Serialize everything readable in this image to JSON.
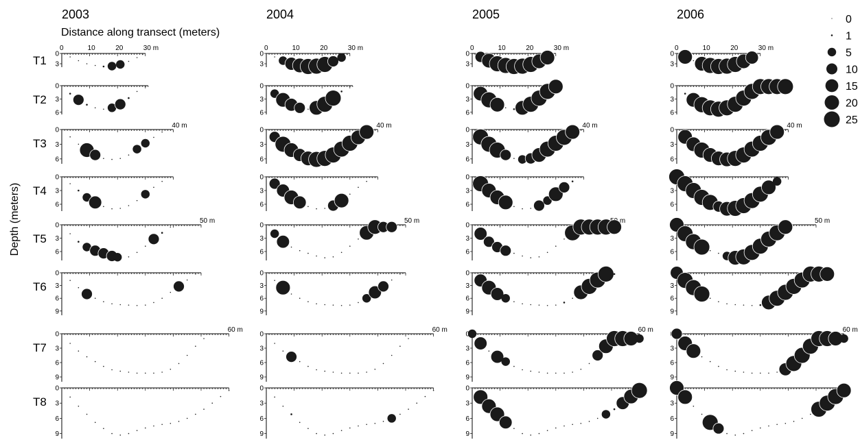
{
  "chart_data": {
    "type": "scatter",
    "panel_kind": "bubble depth profiles (dot size = count)",
    "years": [
      "2003",
      "2004",
      "2005",
      "2006"
    ],
    "xlabel": "Distance along transect (meters)",
    "ylabel": "Depth (meters)",
    "x_tick_labels": [
      "0",
      "10",
      "20",
      "30 m"
    ],
    "x_tick_values": [
      0,
      10,
      20,
      30
    ],
    "transects": [
      {
        "name": "T1",
        "length_m": 30,
        "max_depth": 4,
        "depth_ticks": [
          0,
          3
        ],
        "range_label": "",
        "profile": [
          [
            0,
            0
          ],
          [
            3,
            1
          ],
          [
            6,
            2.1
          ],
          [
            9,
            3
          ],
          [
            12,
            3.5
          ],
          [
            15,
            3.8
          ],
          [
            18,
            3.7
          ],
          [
            21,
            3.2
          ],
          [
            24,
            2.3
          ],
          [
            27,
            1.2
          ],
          [
            29,
            0.3
          ]
        ]
      },
      {
        "name": "T2",
        "length_m": 31,
        "max_depth": 6.5,
        "depth_ticks": [
          0,
          3,
          6
        ],
        "range_label": "",
        "profile": [
          [
            0,
            0
          ],
          [
            3,
            1.8
          ],
          [
            6,
            3.2
          ],
          [
            9,
            4.3
          ],
          [
            12,
            5
          ],
          [
            15,
            5.3
          ],
          [
            18,
            5
          ],
          [
            21,
            4.2
          ],
          [
            24,
            2.8
          ],
          [
            27,
            1.3
          ],
          [
            30,
            0.2
          ]
        ]
      },
      {
        "name": "T3",
        "length_m": 40,
        "max_depth": 7,
        "depth_ticks": [
          0,
          3,
          6
        ],
        "range_label": "40 m",
        "profile": [
          [
            0,
            0
          ],
          [
            3,
            1.5
          ],
          [
            6,
            3
          ],
          [
            9,
            4.2
          ],
          [
            12,
            5.2
          ],
          [
            15,
            5.9
          ],
          [
            18,
            6.1
          ],
          [
            21,
            5.9
          ],
          [
            24,
            5.2
          ],
          [
            27,
            4
          ],
          [
            30,
            2.8
          ],
          [
            33,
            1.6
          ],
          [
            36,
            0.5
          ]
        ]
      },
      {
        "name": "T4",
        "length_m": 40,
        "max_depth": 7.5,
        "depth_ticks": [
          0,
          3,
          6
        ],
        "range_label": "",
        "profile": [
          [
            0,
            0
          ],
          [
            3,
            1.5
          ],
          [
            6,
            3
          ],
          [
            9,
            4.5
          ],
          [
            12,
            5.6
          ],
          [
            15,
            6.5
          ],
          [
            18,
            7
          ],
          [
            21,
            6.9
          ],
          [
            24,
            6.3
          ],
          [
            27,
            5.2
          ],
          [
            30,
            3.8
          ],
          [
            33,
            2.3
          ],
          [
            36,
            1
          ],
          [
            39,
            0
          ]
        ]
      },
      {
        "name": "T5",
        "length_m": 50,
        "max_depth": 8,
        "depth_ticks": [
          0,
          3,
          6
        ],
        "range_label": "50 m",
        "profile": [
          [
            0,
            0
          ],
          [
            3,
            2
          ],
          [
            6,
            3.8
          ],
          [
            9,
            5
          ],
          [
            12,
            5.8
          ],
          [
            15,
            6.4
          ],
          [
            18,
            7
          ],
          [
            21,
            7.4
          ],
          [
            24,
            7.2
          ],
          [
            27,
            6.2
          ],
          [
            30,
            4.8
          ],
          [
            33,
            3.2
          ],
          [
            36,
            1.8
          ],
          [
            39,
            0.5
          ]
        ]
      },
      {
        "name": "T6",
        "length_m": 50,
        "max_depth": 10,
        "depth_ticks": [
          0,
          3,
          6,
          9
        ],
        "range_label": "",
        "profile": [
          [
            0,
            0
          ],
          [
            3,
            1.8
          ],
          [
            6,
            3.5
          ],
          [
            9,
            5
          ],
          [
            12,
            6
          ],
          [
            15,
            6.8
          ],
          [
            18,
            7.3
          ],
          [
            21,
            7.5
          ],
          [
            24,
            7.6
          ],
          [
            27,
            7.7
          ],
          [
            30,
            7.6
          ],
          [
            33,
            7
          ],
          [
            36,
            6
          ],
          [
            39,
            4.6
          ],
          [
            42,
            3.2
          ],
          [
            45,
            1.7
          ],
          [
            48,
            0.3
          ]
        ]
      },
      {
        "name": "T7",
        "length_m": 60,
        "max_depth": 10,
        "depth_ticks": [
          0,
          3,
          6,
          9
        ],
        "range_label": "60 m",
        "profile": [
          [
            0,
            0
          ],
          [
            3,
            2
          ],
          [
            6,
            3.6
          ],
          [
            9,
            4.8
          ],
          [
            12,
            5.8
          ],
          [
            15,
            6.8
          ],
          [
            18,
            7.5
          ],
          [
            21,
            7.8
          ],
          [
            24,
            8
          ],
          [
            27,
            8.2
          ],
          [
            30,
            8.2
          ],
          [
            33,
            8.2
          ],
          [
            36,
            8
          ],
          [
            39,
            7.4
          ],
          [
            42,
            6.2
          ],
          [
            45,
            4.5
          ],
          [
            48,
            2.6
          ],
          [
            51,
            1
          ]
        ]
      },
      {
        "name": "T8",
        "length_m": 60,
        "max_depth": 10,
        "depth_ticks": [
          0,
          3,
          6,
          9
        ],
        "range_label": "",
        "profile": [
          [
            0,
            0
          ],
          [
            3,
            1.8
          ],
          [
            6,
            3.6
          ],
          [
            9,
            5.2
          ],
          [
            12,
            6.8
          ],
          [
            15,
            8
          ],
          [
            18,
            9
          ],
          [
            21,
            9.3
          ],
          [
            24,
            9
          ],
          [
            27,
            8.4
          ],
          [
            30,
            7.9
          ],
          [
            33,
            7.5
          ],
          [
            36,
            7.2
          ],
          [
            39,
            7
          ],
          [
            42,
            6.6
          ],
          [
            45,
            6
          ],
          [
            48,
            5.2
          ],
          [
            51,
            4.2
          ],
          [
            54,
            3
          ],
          [
            57,
            1.7
          ],
          [
            60,
            0.5
          ]
        ]
      }
    ],
    "observations": [
      {
        "year": "2003",
        "transect": "T1",
        "x": [
          15,
          18,
          21
        ],
        "size": [
          1,
          5,
          5
        ]
      },
      {
        "year": "2003",
        "transect": "T2",
        "x": [
          3,
          6,
          9,
          18,
          21,
          24
        ],
        "size": [
          1,
          10,
          1,
          5,
          10,
          1
        ]
      },
      {
        "year": "2003",
        "transect": "T3",
        "x": [
          9,
          12,
          27,
          30
        ],
        "size": [
          20,
          10,
          5,
          5
        ]
      },
      {
        "year": "2003",
        "transect": "T4",
        "x": [
          6,
          9,
          12,
          30
        ],
        "size": [
          1,
          5,
          15,
          5
        ]
      },
      {
        "year": "2003",
        "transect": "T5",
        "x": [
          6,
          9,
          12,
          15,
          18,
          20,
          33,
          36
        ],
        "size": [
          1,
          5,
          10,
          10,
          10,
          5,
          10,
          1
        ]
      },
      {
        "year": "2003",
        "transect": "T6",
        "x": [
          9,
          42
        ],
        "size": [
          10,
          10
        ]
      },
      {
        "year": "2004",
        "transect": "T1",
        "x": [
          6,
          9,
          12,
          15,
          18,
          21,
          24,
          27
        ],
        "size": [
          5,
          15,
          20,
          25,
          25,
          25,
          10,
          5
        ]
      },
      {
        "year": "2004",
        "transect": "T2",
        "x": [
          3,
          6,
          9,
          12,
          18,
          21,
          24,
          27
        ],
        "size": [
          5,
          20,
          15,
          10,
          20,
          25,
          25,
          1
        ]
      },
      {
        "year": "2004",
        "transect": "T3",
        "x": [
          3,
          6,
          9,
          12,
          15,
          18,
          21,
          24,
          27,
          30,
          33,
          36
        ],
        "size": [
          10,
          25,
          20,
          15,
          20,
          25,
          25,
          25,
          25,
          25,
          20,
          20
        ]
      },
      {
        "year": "2004",
        "transect": "T4",
        "x": [
          3,
          6,
          9,
          12,
          24,
          27
        ],
        "size": [
          10,
          15,
          20,
          15,
          10,
          20
        ]
      },
      {
        "year": "2004",
        "transect": "T5",
        "x": [
          3,
          6,
          36,
          39,
          42,
          45
        ],
        "size": [
          5,
          15,
          20,
          20,
          10,
          10
        ]
      },
      {
        "year": "2004",
        "transect": "T6",
        "x": [
          6,
          36,
          39,
          42
        ],
        "size": [
          20,
          5,
          15,
          10
        ]
      },
      {
        "year": "2004",
        "transect": "T7",
        "x": [
          9
        ],
        "size": [
          10
        ]
      },
      {
        "year": "2004",
        "transect": "T8",
        "x": [
          9,
          45
        ],
        "size": [
          1,
          5
        ]
      },
      {
        "year": "2005",
        "transect": "T1",
        "x": [
          3,
          6,
          9,
          12,
          15,
          18,
          21,
          24,
          27
        ],
        "size": [
          10,
          20,
          25,
          25,
          25,
          25,
          25,
          20,
          20
        ]
      },
      {
        "year": "2005",
        "transect": "T2",
        "x": [
          3,
          6,
          9,
          15,
          18,
          21,
          24,
          27,
          30
        ],
        "size": [
          20,
          25,
          20,
          1,
          20,
          25,
          25,
          25,
          20
        ]
      },
      {
        "year": "2005",
        "transect": "T3",
        "x": [
          3,
          6,
          9,
          12,
          18,
          21,
          24,
          27,
          30,
          33,
          36
        ],
        "size": [
          25,
          25,
          25,
          10,
          5,
          10,
          20,
          25,
          25,
          25,
          20
        ]
      },
      {
        "year": "2005",
        "transect": "T4",
        "x": [
          3,
          6,
          9,
          12,
          24,
          27,
          30,
          33,
          36
        ],
        "size": [
          25,
          20,
          20,
          20,
          10,
          5,
          20,
          10,
          1
        ]
      },
      {
        "year": "2005",
        "transect": "T5",
        "x": [
          3,
          6,
          9,
          12,
          36,
          39,
          42,
          45,
          48,
          51
        ],
        "size": [
          15,
          10,
          10,
          10,
          25,
          25,
          25,
          25,
          25,
          20
        ]
      },
      {
        "year": "2005",
        "transect": "T6",
        "x": [
          3,
          6,
          9,
          12,
          33,
          39,
          42,
          45,
          48,
          51
        ],
        "size": [
          15,
          20,
          15,
          5,
          1,
          20,
          25,
          25,
          25,
          1
        ]
      },
      {
        "year": "2005",
        "transect": "T7",
        "x": [
          0,
          3,
          9,
          12,
          45,
          48,
          51,
          54,
          57,
          60
        ],
        "size": [
          5,
          15,
          15,
          5,
          10,
          20,
          25,
          25,
          20,
          5
        ]
      },
      {
        "year": "2005",
        "transect": "T8",
        "x": [
          3,
          6,
          9,
          12,
          48,
          51,
          54,
          57,
          60
        ],
        "size": [
          20,
          20,
          20,
          15,
          5,
          1,
          15,
          20,
          25
        ]
      },
      {
        "year": "2006",
        "transect": "T1",
        "x": [
          3,
          9,
          12,
          15,
          18,
          21,
          24,
          27
        ],
        "size": [
          20,
          20,
          25,
          25,
          25,
          25,
          20,
          15
        ]
      },
      {
        "year": "2006",
        "transect": "T2",
        "x": [
          3,
          6,
          9,
          12,
          15,
          18,
          21,
          24,
          27,
          30,
          33,
          36,
          39
        ],
        "size": [
          1,
          20,
          25,
          25,
          25,
          25,
          25,
          25,
          25,
          25,
          25,
          25,
          25
        ]
      },
      {
        "year": "2006",
        "transect": "T3",
        "x": [
          3,
          6,
          9,
          12,
          15,
          18,
          21,
          24,
          27,
          30,
          33,
          36
        ],
        "size": [
          20,
          20,
          25,
          20,
          20,
          20,
          25,
          25,
          25,
          25,
          25,
          20
        ]
      },
      {
        "year": "2006",
        "transect": "T4",
        "x": [
          0,
          3,
          6,
          9,
          12,
          15,
          18,
          21,
          24,
          27,
          30,
          33,
          36
        ],
        "size": [
          25,
          25,
          25,
          25,
          25,
          10,
          20,
          25,
          25,
          25,
          25,
          20,
          5
        ]
      },
      {
        "year": "2006",
        "transect": "T5",
        "x": [
          0,
          3,
          6,
          9,
          18,
          21,
          24,
          27,
          30,
          33,
          36,
          39
        ],
        "size": [
          20,
          25,
          25,
          25,
          5,
          20,
          25,
          25,
          25,
          25,
          25,
          20
        ]
      },
      {
        "year": "2006",
        "transect": "T6",
        "x": [
          0,
          3,
          6,
          9,
          30,
          33,
          36,
          39,
          42,
          45,
          48,
          51,
          54
        ],
        "size": [
          15,
          25,
          25,
          25,
          1,
          20,
          25,
          25,
          25,
          25,
          25,
          25,
          20
        ]
      },
      {
        "year": "2006",
        "transect": "T7",
        "x": [
          0,
          3,
          6,
          39,
          42,
          45,
          48,
          51,
          54,
          57,
          60
        ],
        "size": [
          10,
          20,
          20,
          15,
          25,
          25,
          25,
          25,
          25,
          20,
          5
        ]
      },
      {
        "year": "2006",
        "transect": "T8",
        "x": [
          0,
          3,
          12,
          15,
          51,
          54,
          57,
          60
        ],
        "size": [
          20,
          20,
          25,
          10,
          25,
          25,
          25,
          20
        ]
      }
    ],
    "legend": {
      "placement": "top-right",
      "entries": [
        {
          "label": "0",
          "size": 0
        },
        {
          "label": "1",
          "size": 1
        },
        {
          "label": "5",
          "size": 5
        },
        {
          "label": "10",
          "size": 10
        },
        {
          "label": "15",
          "size": 15
        },
        {
          "label": "20",
          "size": 20
        },
        {
          "label": "25",
          "size": 25
        }
      ]
    }
  }
}
